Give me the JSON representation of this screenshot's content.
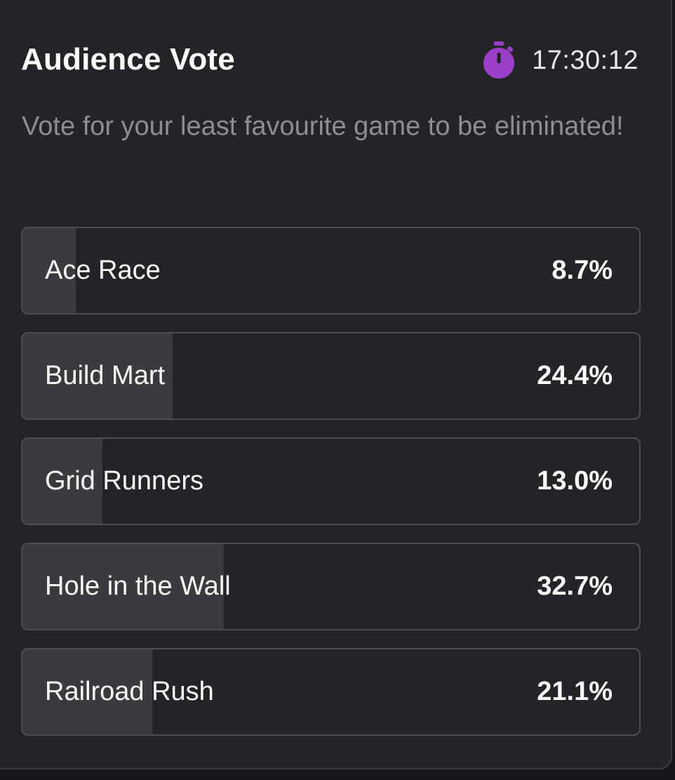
{
  "poll": {
    "title": "Audience Vote",
    "timer": "17:30:12",
    "timer_icon": "stopwatch-icon",
    "accent_color": "#9b3fc9",
    "subtitle": "Vote for your least favourite game to be eliminated!",
    "options": [
      {
        "label": "Ace Race",
        "percent_text": "8.7%",
        "percent": 8.7
      },
      {
        "label": "Build Mart",
        "percent_text": "24.4%",
        "percent": 24.4
      },
      {
        "label": "Grid Runners",
        "percent_text": "13.0%",
        "percent": 13.0
      },
      {
        "label": "Hole in the Wall",
        "percent_text": "32.7%",
        "percent": 32.7
      },
      {
        "label": "Railroad Rush",
        "percent_text": "21.1%",
        "percent": 21.1
      }
    ]
  }
}
